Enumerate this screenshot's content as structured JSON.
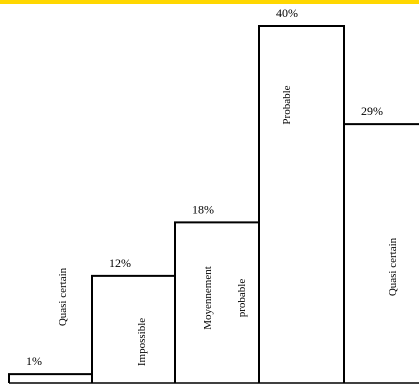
{
  "accent_line_color": "#FFD700",
  "chart_data": {
    "type": "bar",
    "categories": [
      "Quasi certain",
      "Impossible",
      "Moyennement probable",
      "Probable",
      "Quasi certain"
    ],
    "values": [
      1,
      12,
      18,
      40,
      29
    ],
    "value_labels": [
      "1%",
      "12%",
      "18%",
      "40%",
      "29%"
    ],
    "category_label_lines": [
      [
        "Quasi certain"
      ],
      [
        "Impossible"
      ],
      [
        "Moyennement",
        "probable"
      ],
      [
        "Probable"
      ],
      [
        "Quasi certain"
      ]
    ],
    "ylim": [
      0,
      40
    ],
    "grid": false,
    "legend": "none",
    "title": "",
    "xlabel": "",
    "ylabel": ""
  }
}
